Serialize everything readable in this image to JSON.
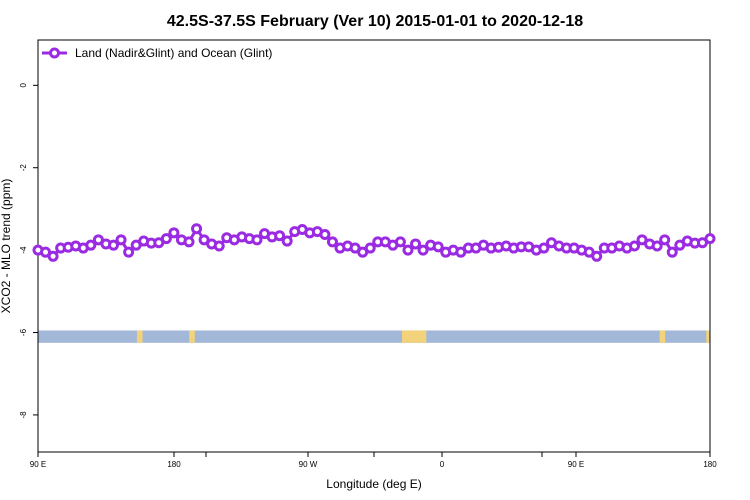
{
  "chart_data": {
    "type": "line",
    "title": "42.5S-37.5S February (Ver 10)   2015-01-01 to 2020-12-18",
    "xlabel": "Longitude (deg E)",
    "ylabel": "XCO2 - MLO trend (ppm)",
    "xlim": [
      90,
      450
    ],
    "ylim": [
      -8.9,
      1.1
    ],
    "x_ticks": [
      {
        "value": 90,
        "label": "90 E"
      },
      {
        "value": 180,
        "label": "180"
      },
      {
        "value": 270,
        "label": "90 W"
      },
      {
        "value": 360,
        "label": "0"
      },
      {
        "value": 450,
        "label": "90 E"
      },
      {
        "value": 540,
        "label": "180"
      }
    ],
    "y_ticks": [
      {
        "value": 0,
        "label": "0"
      },
      {
        "value": -2,
        "label": "-2"
      },
      {
        "value": -4,
        "label": "-4"
      },
      {
        "value": -6,
        "label": "-6"
      },
      {
        "value": -8,
        "label": "-8"
      }
    ],
    "series": [
      {
        "name": "Land (Nadir&Glint) and Ocean (Glint)",
        "color": "#9a2be2",
        "marker": "open-circle",
        "x_start": 90,
        "x_step": 5,
        "values": [
          -4.0,
          -4.05,
          -4.15,
          -3.95,
          -3.93,
          -3.9,
          -3.95,
          -3.88,
          -3.75,
          -3.85,
          -3.88,
          -3.75,
          -4.05,
          -3.88,
          -3.78,
          -3.83,
          -3.82,
          -3.72,
          -3.58,
          -3.75,
          -3.8,
          -3.48,
          -3.75,
          -3.85,
          -3.9,
          -3.7,
          -3.75,
          -3.68,
          -3.72,
          -3.75,
          -3.6,
          -3.68,
          -3.65,
          -3.78,
          -3.55,
          -3.5,
          -3.58,
          -3.55,
          -3.62,
          -3.8,
          -3.95,
          -3.9,
          -3.95,
          -4.05,
          -3.95,
          -3.8,
          -3.8,
          -3.88,
          -3.8,
          -4.0,
          -3.85,
          -4.0,
          -3.88,
          -3.92,
          -4.05,
          -4.0,
          -4.05,
          -3.95,
          -3.95,
          -3.88,
          -3.95,
          -3.93,
          -3.9,
          -3.95,
          -3.92,
          -3.92,
          -4.0,
          -3.95,
          -3.82,
          -3.9,
          -3.95,
          -3.95,
          -4.0,
          -4.05,
          -4.15,
          -3.95,
          -3.95,
          -3.9,
          -3.95,
          -3.9,
          -3.75,
          -3.85,
          -3.9,
          -3.75,
          -4.05,
          -3.88,
          -3.78,
          -3.83,
          -3.82,
          -3.72
        ]
      }
    ],
    "surface_strip": {
      "y_top": -5.95,
      "y_bottom": -6.25,
      "ocean_color": "#a3b8d8",
      "land_color": "#f2d27a",
      "land_segments": [
        [
          143,
          146
        ],
        [
          171,
          174
        ],
        [
          285,
          298
        ],
        [
          423,
          426
        ],
        [
          448,
          450
        ]
      ]
    },
    "legend": {
      "position": "top-left"
    },
    "grid": false
  }
}
